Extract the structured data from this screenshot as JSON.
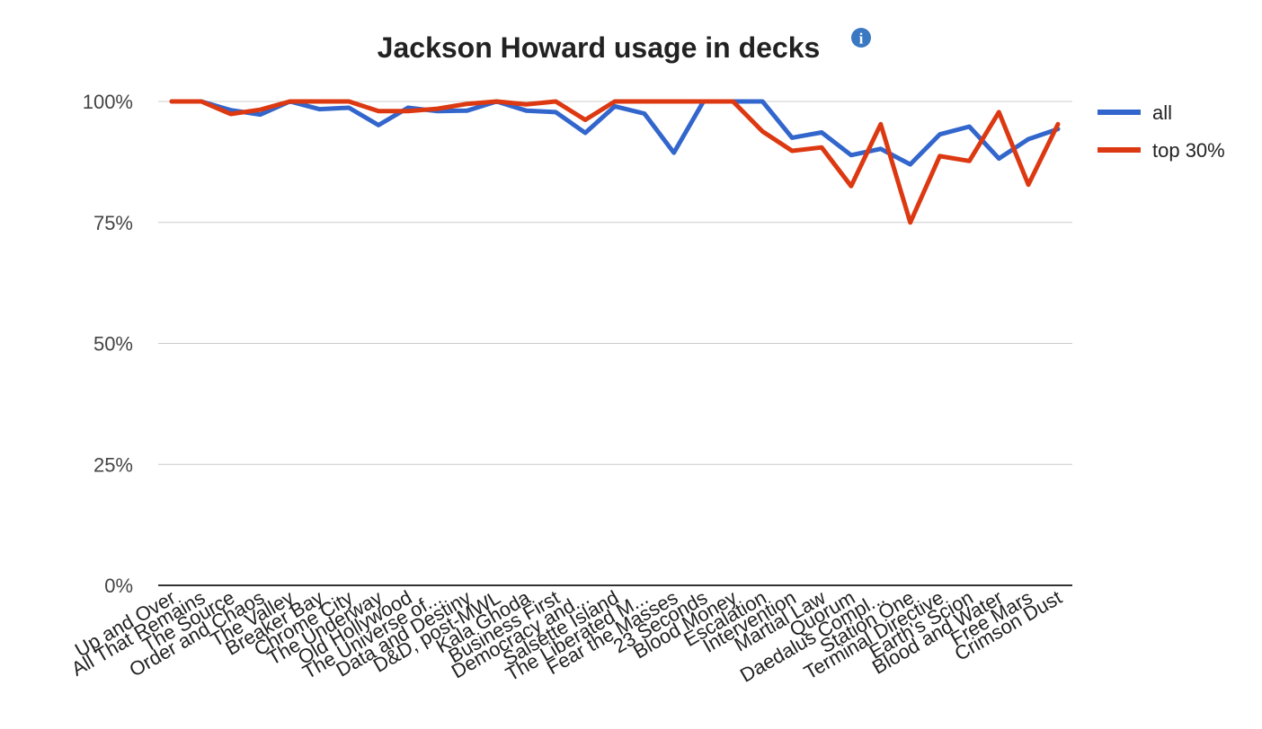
{
  "colors": {
    "all": "#3366cc",
    "top30": "#dc3912",
    "grid": "#cccccc",
    "axis": "#333333",
    "info": "#3a78c2"
  },
  "info_icon": {
    "name": "info-icon",
    "glyph": "i"
  },
  "chart_data": {
    "type": "line",
    "title": "Jackson Howard usage in decks",
    "xlabel": "",
    "ylabel": "",
    "ylim": [
      0,
      100
    ],
    "yticks": [
      "0%",
      "25%",
      "50%",
      "75%",
      "100%"
    ],
    "ytick_values": [
      0,
      25,
      50,
      75,
      100
    ],
    "grid": true,
    "legend_position": "right",
    "categories": [
      "Up and Over",
      "All That Remains",
      "The Source",
      "Order and Chaos",
      "The Valley",
      "Breaker Bay",
      "Chrome City",
      "The Underway",
      "Old Hollywood",
      "The Universe of...",
      "Data and Destiny",
      "D&D, post-MWL",
      "Kala Ghoda",
      "Business First",
      "Democracy and...",
      "Salsette Island",
      "The Liberated M...",
      "Fear the Masses",
      "23 Seconds",
      "Blood Money",
      "Escalation",
      "Intervention",
      "Martial Law",
      "Quorum",
      "Daedalus Compl...",
      "Station One",
      "Terminal Directive",
      "Earth's Scion",
      "Blood and Water",
      "Free Mars",
      "Crimson Dust"
    ],
    "series": [
      {
        "name": "all",
        "color": "#3366cc",
        "values": [
          100,
          100,
          98.2,
          97.3,
          100,
          98.4,
          98.7,
          95.1,
          98.7,
          98.0,
          98.1,
          100,
          98.1,
          97.8,
          93.5,
          99.0,
          97.5,
          89.4,
          100,
          100,
          100,
          92.5,
          93.6,
          88.9,
          90.2,
          87.0,
          93.2,
          94.8,
          88.2,
          92.2,
          94.3
        ]
      },
      {
        "name": "top 30%",
        "color": "#dc3912",
        "values": [
          100,
          100,
          97.4,
          98.3,
          100,
          100,
          100,
          98.0,
          98.0,
          98.5,
          99.5,
          100,
          99.4,
          100,
          96.2,
          100,
          100,
          100,
          100,
          100,
          93.8,
          89.8,
          90.5,
          82.5,
          95.3,
          75.0,
          88.7,
          87.7,
          97.8,
          82.8,
          95.3
        ]
      }
    ]
  }
}
